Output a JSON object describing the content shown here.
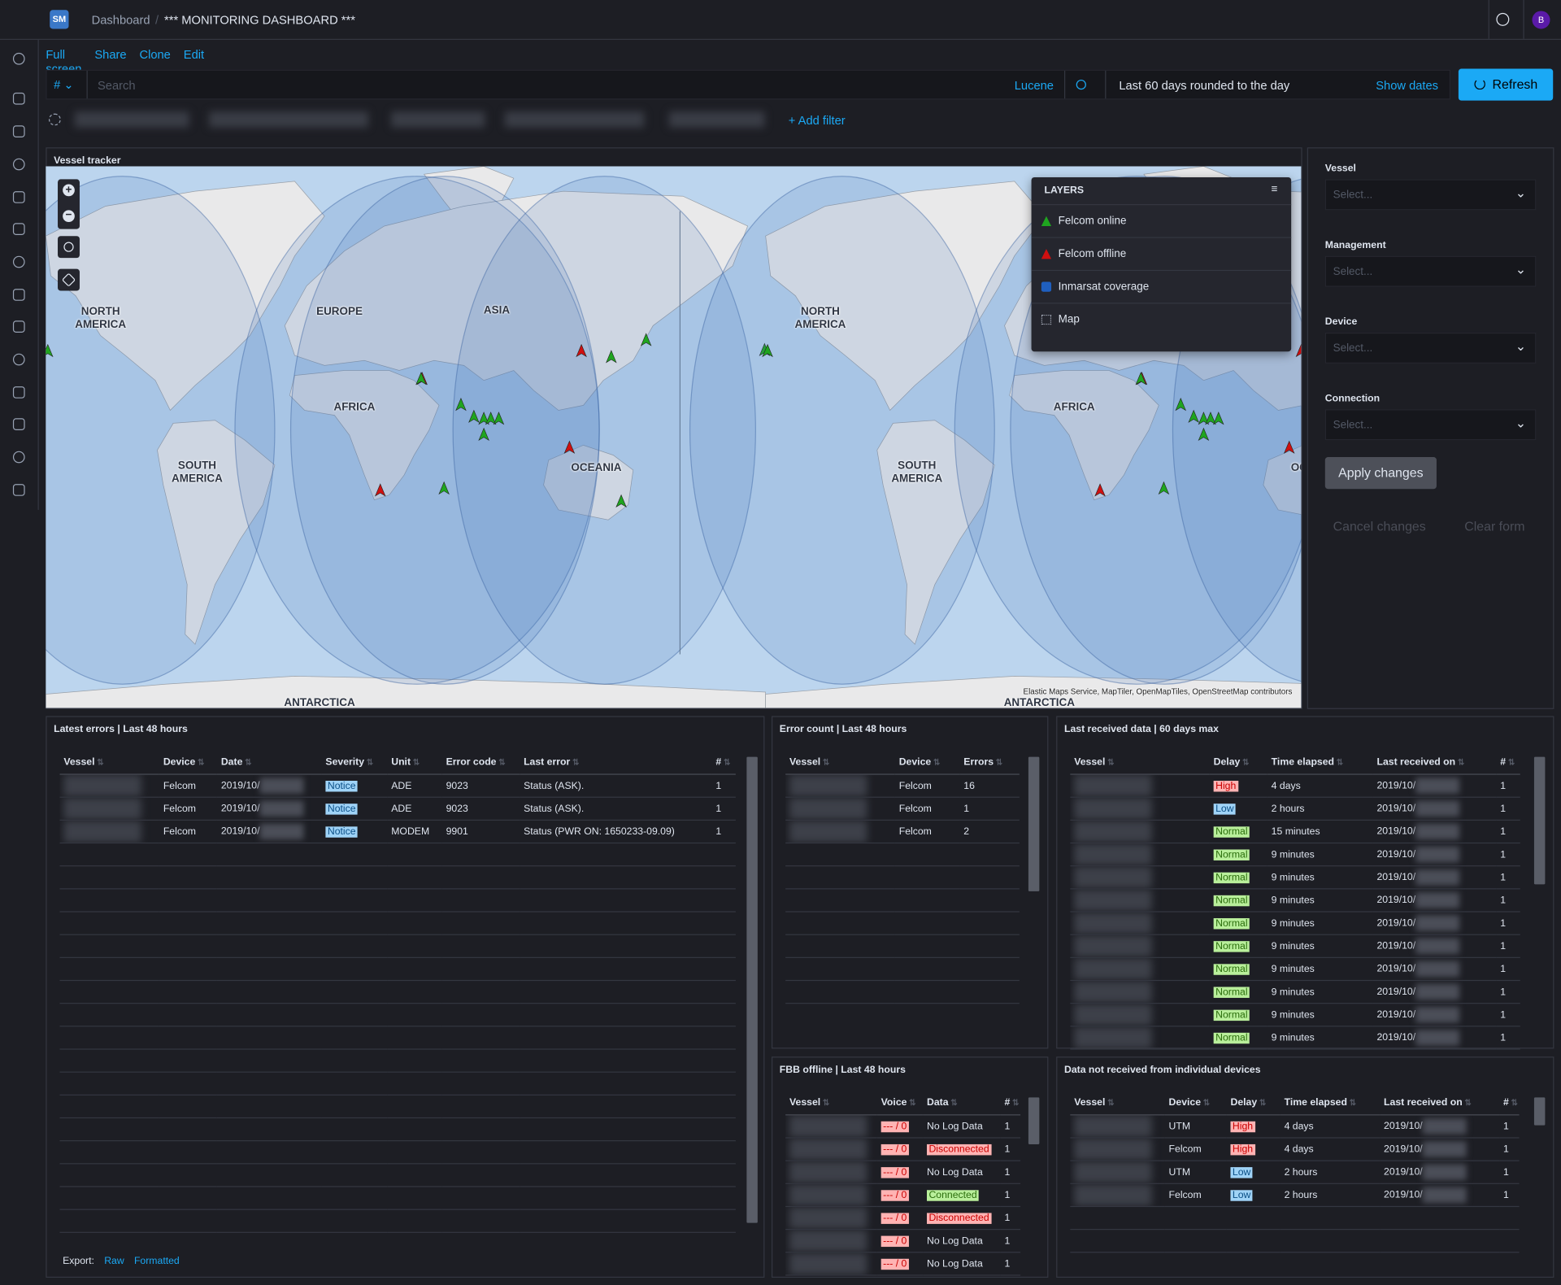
{
  "header": {
    "logo": "SM",
    "breadcrumb": "Dashboard",
    "title": "*** MONITORING DASHBOARD ***",
    "user": "B"
  },
  "menu": [
    "Full screen",
    "Share",
    "Clone",
    "Edit"
  ],
  "query": {
    "type_toggle": "#",
    "placeholder": "Search",
    "language": "Lucene",
    "time_range": "Last 60 days rounded to the day",
    "show_dates": "Show dates",
    "refresh": "Refresh"
  },
  "filters": {
    "add": "+ Add filter"
  },
  "map": {
    "title": "Vessel tracker",
    "labels": {
      "north_america": "NORTH AMERICA",
      "europe": "EUROPE",
      "asia": "ASIA",
      "africa": "AFRICA",
      "south_america": "SOUTH AMERICA",
      "oceania": "OCEANIA",
      "antarctica": "ANTARCTICA"
    },
    "layers_title": "LAYERS",
    "layers": [
      {
        "name": "Felcom online",
        "color": "#1fa51f"
      },
      {
        "name": "Felcom offline",
        "color": "#d01010"
      },
      {
        "name": "Inmarsat coverage",
        "color": "#1f5fbf"
      },
      {
        "name": "Map",
        "color": "#aab0bd"
      }
    ],
    "attribution": "Elastic Maps Service, MapTiler, OpenMapTiles, OpenStreetMap contributors"
  },
  "controls": {
    "fields": [
      {
        "label": "Vessel",
        "placeholder": "Select..."
      },
      {
        "label": "Management",
        "placeholder": "Select..."
      },
      {
        "label": "Device",
        "placeholder": "Select..."
      },
      {
        "label": "Connection",
        "placeholder": "Select..."
      }
    ],
    "apply": "Apply changes",
    "cancel": "Cancel changes",
    "clear": "Clear form"
  },
  "tables": {
    "latest_errors": {
      "title": "Latest errors | Last 48 hours",
      "columns": [
        "Vessel",
        "Device",
        "Date",
        "Severity",
        "Unit",
        "Error code",
        "Last error",
        "#"
      ],
      "rows": [
        [
          null,
          "Felcom",
          "2019/10/",
          "Notice",
          "ADE",
          9023,
          "Status (ASK).",
          1
        ],
        [
          null,
          "Felcom",
          "2019/10/",
          "Notice",
          "ADE",
          9023,
          "Status (ASK).",
          1
        ],
        [
          null,
          "Felcom",
          "2019/10/",
          "Notice",
          "MODEM",
          9901,
          "Status (PWR ON: 1650233-09.09)",
          1
        ]
      ],
      "badges": {
        "Notice": {
          "bg": "#9fd3f7",
          "fg": "#0b4f86"
        }
      },
      "export": {
        "label": "Export:",
        "raw": "Raw",
        "formatted": "Formatted"
      }
    },
    "error_count": {
      "title": "Error count | Last 48 hours",
      "columns": [
        "Vessel",
        "Device",
        "Errors"
      ],
      "rows": [
        [
          null,
          "Felcom",
          16
        ],
        [
          null,
          "Felcom",
          1
        ],
        [
          null,
          "Felcom",
          2
        ]
      ]
    },
    "fbb_offline": {
      "title": "FBB offline | Last 48 hours",
      "columns": [
        "Vessel",
        "Voice",
        "Data",
        "#"
      ],
      "rows": [
        [
          null,
          "--- / 0",
          "No Log Data",
          1
        ],
        [
          null,
          "--- / 0",
          "Disconnected",
          1
        ],
        [
          null,
          "--- / 0",
          "No Log Data",
          1
        ],
        [
          null,
          "--- / 0",
          "Connected",
          1
        ],
        [
          null,
          "--- / 0",
          "Disconnected",
          1
        ],
        [
          null,
          "--- / 0",
          "No Log Data",
          1
        ],
        [
          null,
          "--- / 0",
          "No Log Data",
          1
        ]
      ],
      "badges": {
        "--- / 0": {
          "bg": "#ffb3b3",
          "fg": "#c90000"
        },
        "Disconnected": {
          "bg": "#ffb3b3",
          "fg": "#c90000"
        },
        "Connected": {
          "bg": "#b9ef9b",
          "fg": "#2b6e0c"
        }
      }
    },
    "last_received": {
      "title": "Last received data | 60 days max",
      "columns": [
        "Vessel",
        "Delay",
        "Time elapsed",
        "Last received on",
        "#"
      ],
      "rows": [
        [
          null,
          "High",
          "4 days",
          "2019/10/",
          1
        ],
        [
          null,
          "Low",
          "2 hours",
          "2019/10/",
          1
        ],
        [
          null,
          "Normal",
          "15 minutes",
          "2019/10/",
          1
        ],
        [
          null,
          "Normal",
          "9 minutes",
          "2019/10/",
          1
        ],
        [
          null,
          "Normal",
          "9 minutes",
          "2019/10/",
          1
        ],
        [
          null,
          "Normal",
          "9 minutes",
          "2019/10/",
          1
        ],
        [
          null,
          "Normal",
          "9 minutes",
          "2019/10/",
          1
        ],
        [
          null,
          "Normal",
          "9 minutes",
          "2019/10/",
          1
        ],
        [
          null,
          "Normal",
          "9 minutes",
          "2019/10/",
          1
        ],
        [
          null,
          "Normal",
          "9 minutes",
          "2019/10/",
          1
        ],
        [
          null,
          "Normal",
          "9 minutes",
          "2019/10/",
          1
        ],
        [
          null,
          "Normal",
          "9 minutes",
          "2019/10/",
          1
        ]
      ],
      "badges": {
        "High": {
          "bg": "#ffb3b3",
          "fg": "#c90000"
        },
        "Low": {
          "bg": "#9fd3f7",
          "fg": "#0b4f86"
        },
        "Normal": {
          "bg": "#b9ef9b",
          "fg": "#2b6e0c"
        }
      }
    },
    "not_received": {
      "title": "Data not received from individual devices",
      "columns": [
        "Vessel",
        "Device",
        "Delay",
        "Time elapsed",
        "Last received on",
        "#"
      ],
      "rows": [
        [
          null,
          "UTM",
          "High",
          "4 days",
          "2019/10/",
          1
        ],
        [
          null,
          "Felcom",
          "High",
          "4 days",
          "2019/10/",
          1
        ],
        [
          null,
          "UTM",
          "Low",
          "2 hours",
          "2019/10/",
          1
        ],
        [
          null,
          "Felcom",
          "Low",
          "2 hours",
          "2019/10/",
          1
        ]
      ],
      "badges": {
        "High": {
          "bg": "#ffb3b3",
          "fg": "#c90000"
        },
        "Low": {
          "bg": "#9fd3f7",
          "fg": "#0b4f86"
        }
      }
    }
  }
}
